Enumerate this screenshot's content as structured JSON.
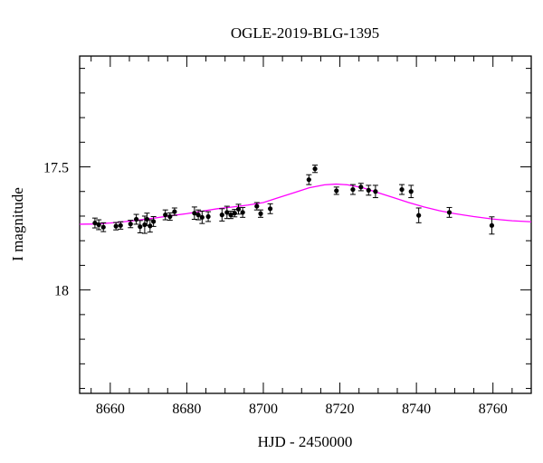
{
  "chart_data": {
    "type": "scatter",
    "title": "OGLE-2019-BLG-1395",
    "xlabel": "HJD - 2450000",
    "ylabel": "I magnitude",
    "xlim": [
      8652,
      8770
    ],
    "ylim": [
      18.42,
      17.05
    ],
    "y_inverted": true,
    "x_ticks": [
      8660,
      8680,
      8700,
      8720,
      8740,
      8760
    ],
    "y_ticks": [
      17.5,
      18
    ],
    "x_tick_labels": [
      "8660",
      "8680",
      "8700",
      "8720",
      "8740",
      "8760"
    ],
    "y_tick_labels": [
      "17.5",
      "18"
    ],
    "grid": false,
    "colors": {
      "data": "#000000",
      "model": "#ff00ff"
    },
    "series": [
      {
        "type": "errorbar",
        "points": [
          {
            "x": 8656.0,
            "y": 17.728,
            "err": 0.02
          },
          {
            "x": 8657.0,
            "y": 17.735,
            "err": 0.02
          },
          {
            "x": 8658.2,
            "y": 17.745,
            "err": 0.018
          },
          {
            "x": 8661.5,
            "y": 17.741,
            "err": 0.015
          },
          {
            "x": 8662.7,
            "y": 17.738,
            "err": 0.015
          },
          {
            "x": 8665.3,
            "y": 17.732,
            "err": 0.015
          },
          {
            "x": 8666.8,
            "y": 17.713,
            "err": 0.02
          },
          {
            "x": 8667.8,
            "y": 17.743,
            "err": 0.025
          },
          {
            "x": 8669.0,
            "y": 17.735,
            "err": 0.035
          },
          {
            "x": 8669.6,
            "y": 17.713,
            "err": 0.025
          },
          {
            "x": 8670.4,
            "y": 17.74,
            "err": 0.025
          },
          {
            "x": 8671.3,
            "y": 17.722,
            "err": 0.02
          },
          {
            "x": 8674.4,
            "y": 17.695,
            "err": 0.02
          },
          {
            "x": 8675.6,
            "y": 17.702,
            "err": 0.015
          },
          {
            "x": 8676.8,
            "y": 17.682,
            "err": 0.015
          },
          {
            "x": 8682.0,
            "y": 17.688,
            "err": 0.025
          },
          {
            "x": 8683.0,
            "y": 17.695,
            "err": 0.02
          },
          {
            "x": 8684.0,
            "y": 17.705,
            "err": 0.025
          },
          {
            "x": 8685.6,
            "y": 17.702,
            "err": 0.02
          },
          {
            "x": 8689.2,
            "y": 17.695,
            "err": 0.025
          },
          {
            "x": 8690.5,
            "y": 17.685,
            "err": 0.025
          },
          {
            "x": 8691.5,
            "y": 17.695,
            "err": 0.015
          },
          {
            "x": 8692.5,
            "y": 17.688,
            "err": 0.015
          },
          {
            "x": 8693.5,
            "y": 17.672,
            "err": 0.02
          },
          {
            "x": 8694.6,
            "y": 17.685,
            "err": 0.02
          },
          {
            "x": 8698.3,
            "y": 17.66,
            "err": 0.015
          },
          {
            "x": 8699.3,
            "y": 17.69,
            "err": 0.015
          },
          {
            "x": 8701.8,
            "y": 17.67,
            "err": 0.02
          },
          {
            "x": 8711.9,
            "y": 17.552,
            "err": 0.02
          },
          {
            "x": 8713.5,
            "y": 17.508,
            "err": 0.015
          },
          {
            "x": 8719.1,
            "y": 17.597,
            "err": 0.015
          },
          {
            "x": 8723.4,
            "y": 17.592,
            "err": 0.02
          },
          {
            "x": 8725.5,
            "y": 17.582,
            "err": 0.015
          },
          {
            "x": 8727.5,
            "y": 17.595,
            "err": 0.02
          },
          {
            "x": 8729.3,
            "y": 17.6,
            "err": 0.025
          },
          {
            "x": 8736.2,
            "y": 17.592,
            "err": 0.02
          },
          {
            "x": 8738.6,
            "y": 17.6,
            "err": 0.025
          },
          {
            "x": 8740.6,
            "y": 17.697,
            "err": 0.03
          },
          {
            "x": 8748.6,
            "y": 17.685,
            "err": 0.02
          },
          {
            "x": 8759.7,
            "y": 17.738,
            "err": 0.035
          }
        ]
      },
      {
        "type": "line",
        "points": [
          {
            "x": 8652,
            "y": 17.733
          },
          {
            "x": 8656,
            "y": 17.732
          },
          {
            "x": 8660,
            "y": 17.728
          },
          {
            "x": 8664,
            "y": 17.722
          },
          {
            "x": 8668,
            "y": 17.715
          },
          {
            "x": 8672,
            "y": 17.707
          },
          {
            "x": 8676,
            "y": 17.698
          },
          {
            "x": 8680,
            "y": 17.69
          },
          {
            "x": 8684,
            "y": 17.68
          },
          {
            "x": 8688,
            "y": 17.67
          },
          {
            "x": 8692,
            "y": 17.663
          },
          {
            "x": 8696,
            "y": 17.655
          },
          {
            "x": 8700,
            "y": 17.645
          },
          {
            "x": 8704,
            "y": 17.625
          },
          {
            "x": 8708,
            "y": 17.605
          },
          {
            "x": 8712,
            "y": 17.585
          },
          {
            "x": 8716,
            "y": 17.573
          },
          {
            "x": 8719,
            "y": 17.57
          },
          {
            "x": 8722,
            "y": 17.573
          },
          {
            "x": 8726,
            "y": 17.585
          },
          {
            "x": 8730,
            "y": 17.605
          },
          {
            "x": 8734,
            "y": 17.625
          },
          {
            "x": 8738,
            "y": 17.645
          },
          {
            "x": 8742,
            "y": 17.663
          },
          {
            "x": 8746,
            "y": 17.678
          },
          {
            "x": 8750,
            "y": 17.69
          },
          {
            "x": 8755,
            "y": 17.702
          },
          {
            "x": 8760,
            "y": 17.712
          },
          {
            "x": 8765,
            "y": 17.719
          },
          {
            "x": 8770,
            "y": 17.723
          }
        ]
      }
    ]
  }
}
